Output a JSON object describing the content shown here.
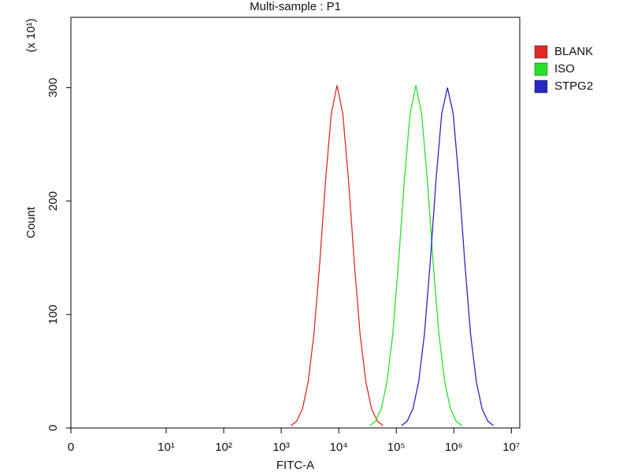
{
  "chart_data": {
    "type": "line",
    "title": "Multi-sample : P1",
    "x_label": "FITC-A",
    "y_label": "Count",
    "y_multiplier": "(x 10¹)",
    "xscale": "log",
    "xlim": [
      0,
      14000000
    ],
    "xticks": [
      0,
      {
        "value": 10,
        "label": "10¹"
      },
      {
        "value": 100,
        "label": "10²"
      },
      {
        "value": 1000,
        "label": "10³"
      },
      {
        "value": 10000,
        "label": "10⁴"
      },
      {
        "value": 100000,
        "label": "10⁵"
      },
      {
        "value": 1000000,
        "label": "10⁶"
      },
      {
        "value": 10000000,
        "label": "10⁷"
      }
    ],
    "ylim": [
      0,
      362
    ],
    "yticks": [
      0,
      100,
      200,
      300
    ],
    "legend": "right",
    "series": [
      {
        "name": "BLANK",
        "color": "#e02828",
        "x": [
          1479,
          1862,
          2344,
          2951,
          3715,
          4677,
          5888,
          7413,
          9333,
          11749,
          14791,
          18621,
          23442,
          29512,
          37154,
          46774,
          58884
        ],
        "values": [
          2,
          6,
          17,
          41,
          83,
          146,
          218,
          277,
          302,
          277,
          218,
          146,
          83,
          41,
          17,
          6,
          2
        ]
      },
      {
        "name": "ISO",
        "color": "#28e028",
        "x": [
          34674,
          43652,
          54954,
          69183,
          87096,
          109648,
          138038,
          173780,
          218776,
          275423,
          346737,
          436516,
          549541,
          691831,
          870964,
          1096478,
          1380384
        ],
        "values": [
          2,
          6,
          17,
          41,
          83,
          146,
          218,
          277,
          302,
          277,
          218,
          146,
          83,
          41,
          17,
          6,
          2
        ]
      },
      {
        "name": "STPG2",
        "color": "#2828c0",
        "x": [
          123027,
          154882,
          194984,
          245471,
          309030,
          389045,
          489779,
          616595,
          776247,
          977237,
          1230269,
          1548817,
          1949845,
          2454709,
          3090295,
          3890451,
          4897788
        ],
        "values": [
          2,
          6,
          17,
          41,
          83,
          146,
          218,
          277,
          300,
          277,
          218,
          146,
          83,
          41,
          17,
          6,
          2
        ]
      }
    ]
  }
}
